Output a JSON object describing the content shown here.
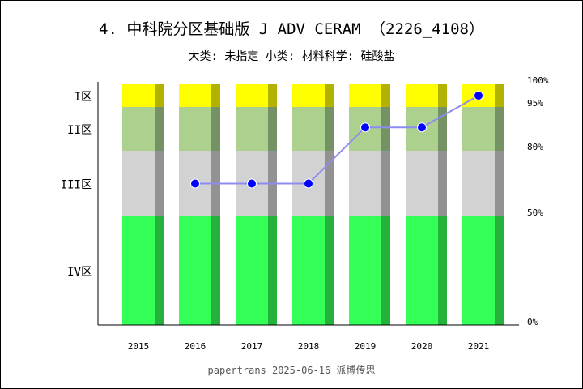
{
  "title": "4. 中科院分区基础版 J ADV CERAM （2226_4108）",
  "subtitle": "大类: 未指定 小类: 材料科学: 硅酸盐",
  "footer": "papertrans 2025-06-16 派博传思",
  "chart_data": {
    "type": "bar+line",
    "categories": [
      "2015",
      "2016",
      "2017",
      "2018",
      "2019",
      "2020",
      "2021"
    ],
    "zones": [
      {
        "label": "IV区",
        "from": 0,
        "to": 50,
        "color": "#33ff57",
        "shade": "#24b23d"
      },
      {
        "label": "III区",
        "from": 50,
        "to": 80,
        "color": "#d3d2d2",
        "shade": "#939292"
      },
      {
        "label": "II区",
        "from": 80,
        "to": 95,
        "color": "#acd18f",
        "shade": "#759265"
      },
      {
        "label": "I区",
        "from": 95,
        "to": 100,
        "color": "#ffff00",
        "shade": "#b2b200"
      }
    ],
    "right_ticks": [
      "0%",
      "50%",
      "80%",
      "95%",
      "100%"
    ],
    "right_tick_values": [
      0,
      50,
      80,
      95,
      100
    ],
    "series": [
      {
        "values": [
          null,
          65,
          65,
          65,
          88,
          88,
          97.5
        ],
        "color": "#0000ff",
        "line_color": "#8c8cf0"
      }
    ],
    "ylim": [
      0,
      100
    ]
  }
}
